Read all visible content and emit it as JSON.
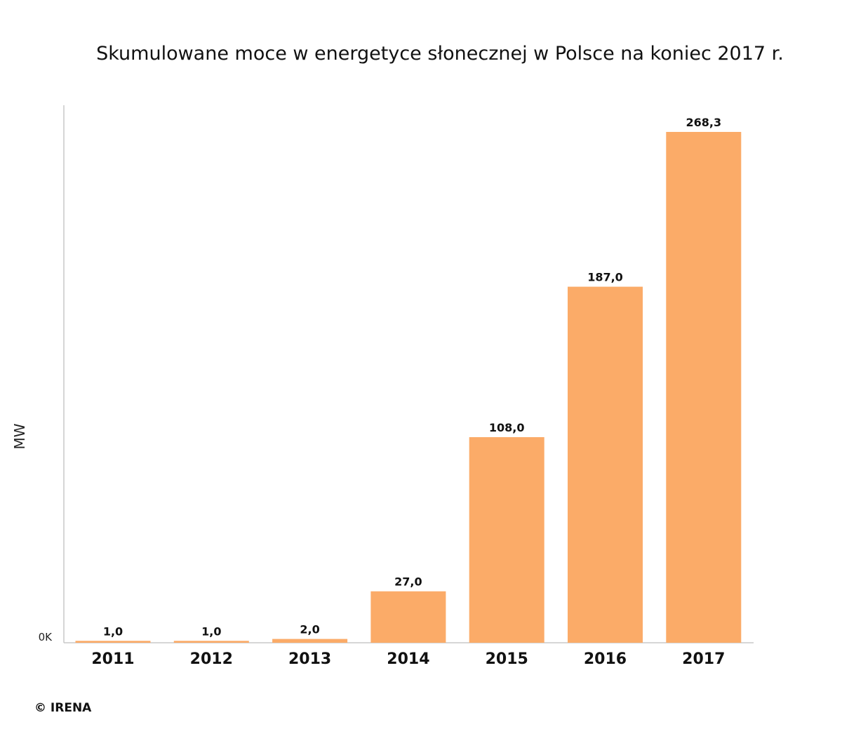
{
  "chart_data": {
    "type": "bar",
    "title": "Skumulowane moce w energetyce słonecznej w Polsce na koniec 2017 r.",
    "xlabel": "",
    "ylabel": "MW",
    "categories": [
      "2011",
      "2012",
      "2013",
      "2014",
      "2015",
      "2016",
      "2017"
    ],
    "values": [
      1.0,
      1.0,
      2.0,
      27.0,
      108.0,
      187.0,
      268.3
    ],
    "value_labels": [
      "1,0",
      "1,0",
      "2,0",
      "27,0",
      "108,0",
      "187,0",
      "268,3"
    ],
    "y_ticks": [
      "0K"
    ],
    "ylim": [
      0,
      268.3
    ],
    "grid": false,
    "legend": "none",
    "bar_color": "#fbab68",
    "axis_color": "#c8c8c8"
  },
  "credit": "© IRENA"
}
